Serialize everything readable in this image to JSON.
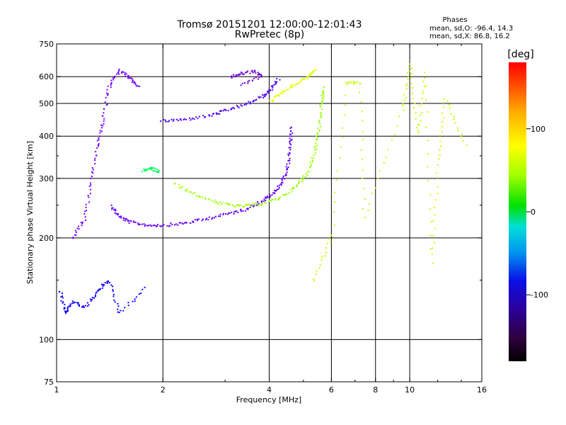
{
  "chart_data": {
    "type": "scatter",
    "title": "Tromsø 20151201 12:00:00-12:01:43",
    "subtitle": "RwPretec (8p)",
    "xlabel": "Frequency [MHz]",
    "ylabel": "Stationary phase Virtual Height [km]",
    "xscale": "log",
    "yscale": "log",
    "xlim": [
      1,
      16
    ],
    "ylim": [
      75,
      750
    ],
    "xticks": [
      1,
      2,
      4,
      6,
      8,
      10,
      16
    ],
    "xtick_labels": [
      "1",
      "2",
      "4",
      "6",
      "8",
      "10",
      "16"
    ],
    "xgrid": [
      2,
      4,
      6,
      8,
      10
    ],
    "yticks": [
      75,
      100,
      200,
      300,
      400,
      500,
      600,
      750
    ],
    "ytick_labels": [
      "75",
      "100",
      "200",
      "300",
      "400",
      "500",
      "600",
      "750"
    ],
    "ygrid": [
      100,
      200,
      300,
      400,
      500,
      600
    ],
    "grid": true,
    "stats": {
      "heading": "Phases",
      "line_o": "mean, sd,O: -96.4, 14.3",
      "line_x": "mean, sd,X:  86.8, 16.2"
    },
    "colorbar": {
      "label": "[deg]",
      "range": [
        -180,
        180
      ],
      "ticks": [
        100,
        0,
        -100
      ],
      "tick_labels": [
        "100",
        "0",
        "-100"
      ]
    },
    "traces": [
      {
        "name": "blue O-trace lower",
        "phase": -100,
        "points": [
          [
            1.42,
            250
          ],
          [
            1.5,
            232
          ],
          [
            1.6,
            224
          ],
          [
            1.8,
            219
          ],
          [
            2.0,
            219
          ],
          [
            2.3,
            222
          ],
          [
            2.6,
            228
          ],
          [
            3.0,
            236
          ],
          [
            3.4,
            244
          ],
          [
            3.8,
            258
          ],
          [
            4.1,
            272
          ],
          [
            4.35,
            296
          ],
          [
            4.5,
            330
          ],
          [
            4.58,
            380
          ],
          [
            4.62,
            430
          ]
        ]
      },
      {
        "name": "yellow X-trace lower",
        "phase": 90,
        "points": [
          [
            2.15,
            290
          ],
          [
            2.5,
            268
          ],
          [
            2.9,
            254
          ],
          [
            3.3,
            249
          ],
          [
            3.7,
            252
          ],
          [
            4.2,
            262
          ],
          [
            4.7,
            282
          ],
          [
            5.1,
            312
          ],
          [
            5.35,
            360
          ],
          [
            5.5,
            420
          ],
          [
            5.6,
            500
          ],
          [
            5.65,
            560
          ]
        ]
      },
      {
        "name": "blue O-trace upper",
        "phase": -95,
        "points": [
          [
            1.98,
            445
          ],
          [
            2.3,
            450
          ],
          [
            2.7,
            462
          ],
          [
            3.0,
            478
          ],
          [
            3.4,
            498
          ],
          [
            3.8,
            525
          ],
          [
            4.05,
            555
          ],
          [
            4.25,
            595
          ]
        ]
      },
      {
        "name": "yellow X-trace upper",
        "phase": 110,
        "points": [
          [
            4.0,
            510
          ],
          [
            4.3,
            540
          ],
          [
            4.7,
            570
          ],
          [
            5.1,
            600
          ],
          [
            5.4,
            635
          ]
        ]
      },
      {
        "name": "purple upper patch",
        "phase": -140,
        "points": [
          [
            3.1,
            600
          ],
          [
            3.3,
            615
          ],
          [
            3.6,
            625
          ],
          [
            3.8,
            605
          ],
          [
            3.3,
            570
          ]
        ]
      },
      {
        "name": "low-frequency spread F",
        "phase": -105,
        "points": [
          [
            1.1,
            200
          ],
          [
            1.2,
            230
          ],
          [
            1.25,
            300
          ],
          [
            1.3,
            380
          ],
          [
            1.35,
            450
          ],
          [
            1.4,
            560
          ],
          [
            1.5,
            630
          ],
          [
            1.6,
            600
          ],
          [
            1.7,
            560
          ]
        ]
      },
      {
        "name": "low echoes",
        "phase": -80,
        "points": [
          [
            1.02,
            140
          ],
          [
            1.05,
            120
          ],
          [
            1.1,
            130
          ],
          [
            1.2,
            125
          ],
          [
            1.3,
            140
          ],
          [
            1.4,
            150
          ],
          [
            1.5,
            120
          ],
          [
            1.8,
            144
          ]
        ]
      },
      {
        "name": "green patch",
        "phase": 30,
        "points": [
          [
            1.75,
            318
          ],
          [
            1.85,
            322
          ],
          [
            1.95,
            315
          ]
        ]
      },
      {
        "name": "scattered high-frequency",
        "phase": 100,
        "points": [
          [
            5.3,
            150
          ],
          [
            6.0,
            205
          ],
          [
            6.6,
            575
          ],
          [
            7.2,
            580
          ],
          [
            7.4,
            230
          ],
          [
            9.5,
            480
          ],
          [
            10.0,
            660
          ],
          [
            10.5,
            410
          ],
          [
            11.0,
            620
          ],
          [
            11.5,
            170
          ],
          [
            12.0,
            330
          ],
          [
            12.5,
            520
          ],
          [
            14.5,
            370
          ]
        ]
      }
    ]
  }
}
